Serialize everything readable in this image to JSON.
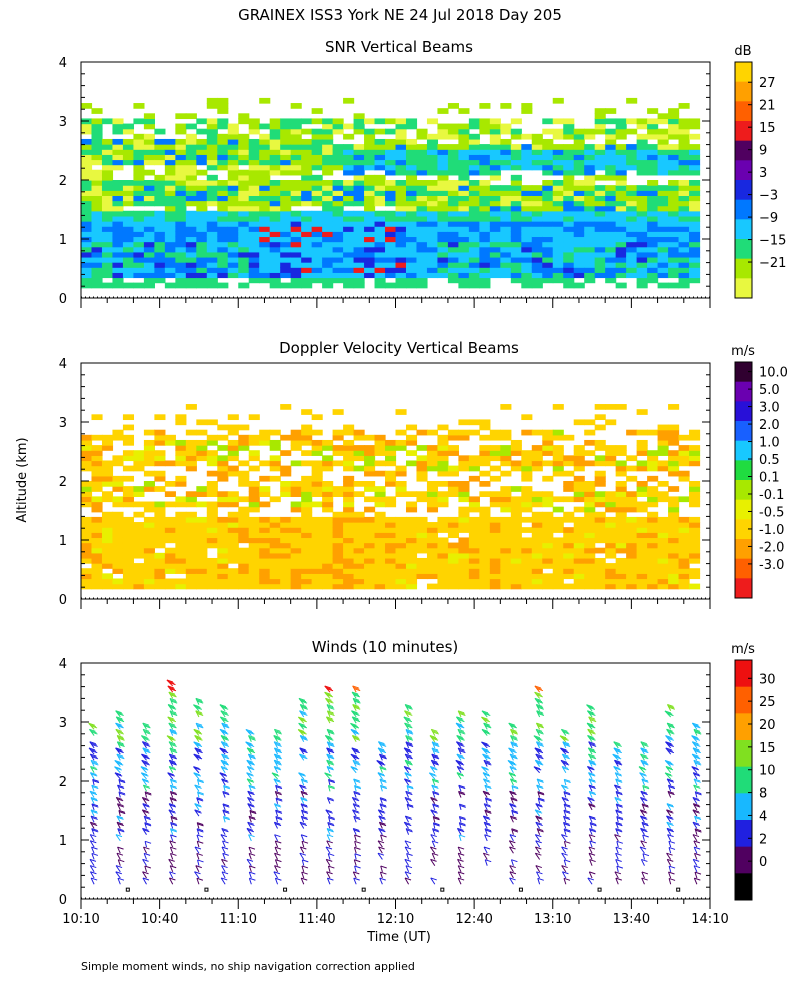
{
  "title": "GRAINEX ISS3 York NE  24 Jul 2018 Day 205",
  "ylabel": "Altitude (km)",
  "xlabel": "Time (UT)",
  "footnote": "Simple moment winds, no ship navigation correction applied",
  "chart_data": [
    {
      "type": "heatmap",
      "title": "SNR Vertical Beams",
      "xlabel": "Time (UT)",
      "ylabel": "Altitude (km)",
      "xlim": [
        "10:10",
        "14:10"
      ],
      "ylim": [
        0,
        4
      ],
      "y_ticks": [
        "0",
        "1",
        "2",
        "3",
        "4"
      ],
      "colorbar": {
        "unit": "dB",
        "labels": [
          "27",
          "21",
          "15",
          "9",
          "3",
          "−3",
          "−9",
          "−15",
          "−21"
        ],
        "colors": [
          "#ffd400",
          "#ffa000",
          "#ff6000",
          "#ee1c1c",
          "#500060",
          "#6a00b0",
          "#1828e0",
          "#0078ff",
          "#18c8ff",
          "#20dc78",
          "#a8e800",
          "#e8f840"
        ]
      },
      "features": [
        {
          "layer": "boundary-layer band",
          "alt_km": [
            0.3,
            1.3
          ],
          "snr_db": [
            -9,
            3
          ]
        },
        {
          "layer": "elevated layers",
          "alt_km": [
            1.5,
            2.8
          ],
          "snr_db": [
            -21,
            -3
          ]
        },
        {
          "layer": "strong echoes",
          "time": "11:10-12:00",
          "alt_km": [
            0.7,
            1.2
          ],
          "snr_db": [
            9,
            21
          ]
        }
      ]
    },
    {
      "type": "heatmap",
      "title": "Doppler Velocity Vertical Beams",
      "xlabel": "Time (UT)",
      "ylabel": "Altitude (km)",
      "xlim": [
        "10:10",
        "14:10"
      ],
      "ylim": [
        0,
        4
      ],
      "y_ticks": [
        "0",
        "1",
        "2",
        "3",
        "4"
      ],
      "colorbar": {
        "unit": "m/s",
        "labels": [
          "10.0",
          "5.0",
          "3.0",
          "2.0",
          "1.0",
          "0.5",
          "0.1",
          "-0.1",
          "-0.5",
          "-1.0",
          "-2.0",
          "-3.0"
        ],
        "colors": [
          "#300030",
          "#6a00b0",
          "#2810d8",
          "#1860ff",
          "#18c8ff",
          "#20dc40",
          "#a8e800",
          "#e8f000",
          "#ffd400",
          "#ffa000",
          "#ff6000",
          "#ee1c1c"
        ]
      },
      "features": [
        {
          "layer": "boundary layer",
          "alt_km": [
            0.3,
            1.4
          ],
          "velocity_ms": [
            -1.0,
            -0.5
          ]
        },
        {
          "layer": "elevated layers",
          "alt_km": [
            1.5,
            2.8
          ],
          "velocity_ms": [
            -0.5,
            0.1
          ]
        }
      ]
    },
    {
      "type": "wind-barbs",
      "title": "Winds (10 minutes)",
      "xlabel": "Time (UT)",
      "ylabel": "Altitude (km)",
      "xlim": [
        "10:10",
        "14:10"
      ],
      "ylim": [
        0,
        4
      ],
      "x_ticks": [
        "10:10",
        "10:40",
        "11:10",
        "11:40",
        "12:10",
        "12:40",
        "13:10",
        "13:40",
        "14:10"
      ],
      "y_ticks": [
        "0",
        "1",
        "2",
        "3",
        "4"
      ],
      "colorbar": {
        "unit": "m/s",
        "labels": [
          "30",
          "25",
          "20",
          "15",
          "10",
          "8",
          "4",
          "2",
          "0"
        ],
        "colors": [
          "#ee1010",
          "#ff6000",
          "#ffa000",
          "#80e020",
          "#20dc78",
          "#18b8ff",
          "#2020e0",
          "#500060",
          "#000000"
        ]
      },
      "profile_interval_minutes": 10,
      "speed_by_altitude_ms": [
        {
          "alt_km": [
            0.2,
            1.0
          ],
          "speed": [
            2,
            6
          ]
        },
        {
          "alt_km": [
            1.0,
            2.0
          ],
          "speed": [
            4,
            8
          ]
        },
        {
          "alt_km": [
            2.0,
            3.0
          ],
          "speed": [
            8,
            12
          ]
        },
        {
          "alt_km": [
            3.0,
            4.0
          ],
          "speed": [
            12,
            30
          ]
        }
      ]
    }
  ]
}
